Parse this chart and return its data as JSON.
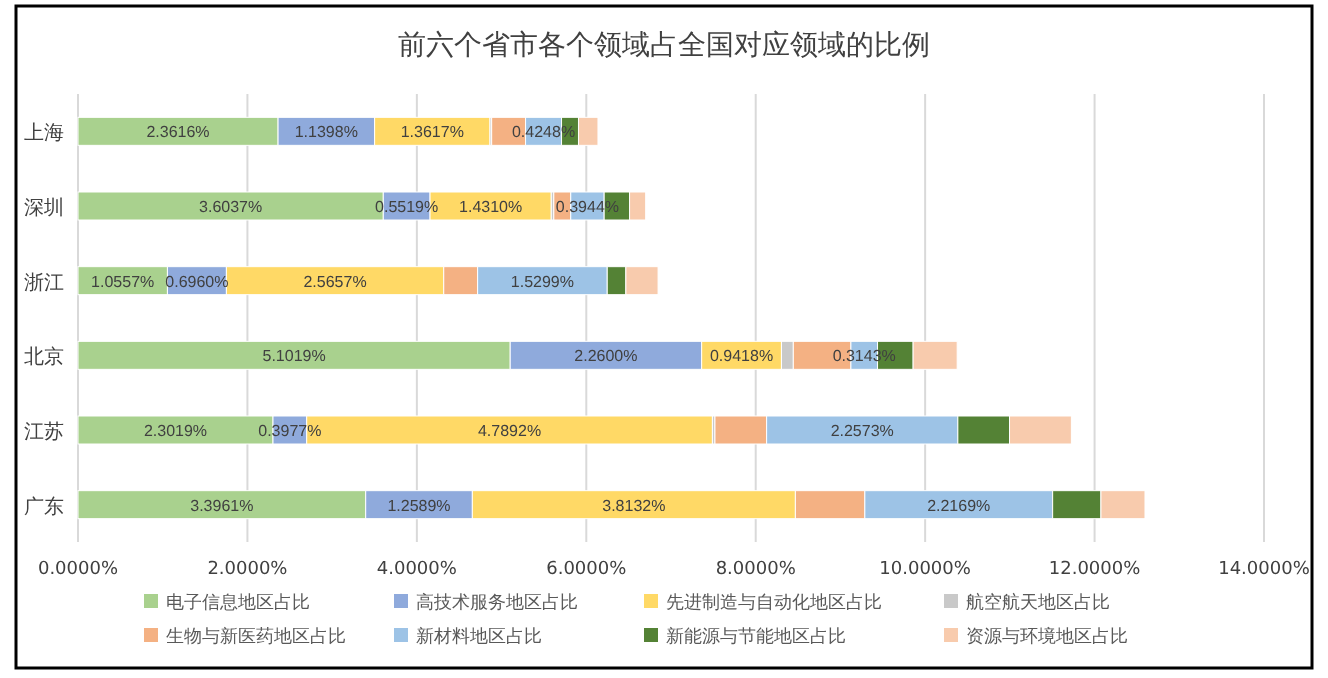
{
  "chart_data": {
    "type": "bar",
    "orientation": "horizontal",
    "stacked": true,
    "title": "前六个省市各个领域占全国对应领域的比例",
    "categories": [
      "上海",
      "深圳",
      "浙江",
      "北京",
      "江苏",
      "广东"
    ],
    "series": [
      {
        "name": "电子信息地区占比",
        "color": "#a9d18e",
        "values": [
          2.3616,
          3.6037,
          1.0557,
          5.1019,
          2.3019,
          3.3961
        ],
        "value_labels": [
          "2.3616%",
          "3.6037%",
          "1.0557%",
          "5.1019%",
          "2.3019%",
          "3.3961%"
        ]
      },
      {
        "name": "高技术服务地区占比",
        "color": "#8faadc",
        "values": [
          1.1398,
          0.5519,
          0.696,
          2.26,
          0.3977,
          1.2589
        ],
        "value_labels": [
          "1.1398%",
          "0.5519%",
          "0.6960%",
          "2.2600%",
          "0.3977%",
          "1.2589%"
        ]
      },
      {
        "name": "先进制造与自动化地区占比",
        "color": "#ffd966",
        "values": [
          1.3617,
          1.431,
          2.5657,
          0.9418,
          4.7892,
          3.8132
        ],
        "value_labels": [
          "1.3617%",
          "1.4310%",
          "2.5657%",
          "0.9418%",
          "4.7892%",
          "3.8132%"
        ]
      },
      {
        "name": "航空航天地区占比",
        "color": "#c9c9c9",
        "values": [
          0.02,
          0.03,
          null,
          0.14,
          0.03,
          null
        ]
      },
      {
        "name": "生物与新医药地区占比",
        "color": "#f4b183",
        "values": [
          0.4,
          0.2,
          0.4,
          0.68,
          0.61,
          0.82
        ]
      },
      {
        "name": "新材料地区占比",
        "color": "#9dc3e6",
        "values": [
          0.4248,
          0.3944,
          1.5299,
          0.3143,
          2.2573,
          2.2169
        ],
        "value_labels": [
          "0.4248%",
          "0.3944%",
          "1.5299%",
          "0.3143%",
          "2.2573%",
          "2.2169%"
        ]
      },
      {
        "name": "新能源与节能地区占比",
        "color": "#548235",
        "values": [
          0.2,
          0.3,
          0.22,
          0.42,
          0.61,
          0.57
        ]
      },
      {
        "name": "资源与环境地区占比",
        "color": "#f8cbad",
        "values": [
          0.23,
          0.19,
          0.38,
          0.52,
          0.73,
          0.52
        ]
      }
    ],
    "xlim": [
      0,
      14
    ],
    "xticks": [
      {
        "value": 0,
        "label": "0.0000%"
      },
      {
        "value": 2,
        "label": "2.0000%"
      },
      {
        "value": 4,
        "label": "4.0000%"
      },
      {
        "value": 6,
        "label": "6.0000%"
      },
      {
        "value": 8,
        "label": "8.0000%"
      },
      {
        "value": 10,
        "label": "10.0000%"
      },
      {
        "value": 12,
        "label": "12.0000%"
      },
      {
        "value": 14,
        "label": "14.0000%"
      }
    ],
    "grid": "x",
    "legend": "bottom"
  }
}
